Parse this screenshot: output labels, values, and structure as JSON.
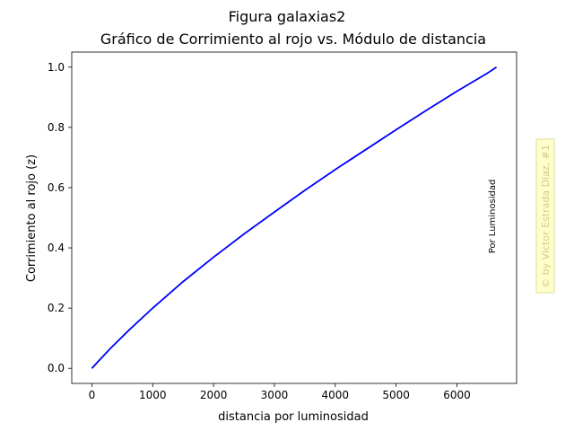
{
  "figure_title": "Figura galaxias2",
  "watermark": "© by Victor Estrada Diaz, #1",
  "chart_data": {
    "type": "line",
    "title": "Gráfico de Corrimiento al rojo vs. Módulo de distancia",
    "xlabel": "distancia por luminosidad",
    "ylabel": "Corrimiento al rojo (z)",
    "annotation": "Por Luminosidad",
    "xlim": [
      -330,
      6980
    ],
    "ylim": [
      -0.05,
      1.05
    ],
    "xticks": [
      0,
      1000,
      2000,
      3000,
      4000,
      5000,
      6000
    ],
    "xtick_labels": [
      "0",
      "1000",
      "2000",
      "3000",
      "4000",
      "5000",
      "6000"
    ],
    "yticks": [
      0.0,
      0.2,
      0.4,
      0.6,
      0.8,
      1.0
    ],
    "ytick_labels": [
      "0.0",
      "0.2",
      "0.4",
      "0.6",
      "0.8",
      "1.0"
    ],
    "grid": false,
    "series": [
      {
        "color": "#0000ff",
        "x": [
          0,
          100,
          300,
          600,
          1000,
          1500,
          2000,
          2500,
          3000,
          3500,
          4000,
          4500,
          5000,
          5500,
          6000,
          6500,
          6650
        ],
        "y": [
          0.0,
          0.022,
          0.065,
          0.125,
          0.2,
          0.288,
          0.369,
          0.446,
          0.519,
          0.591,
          0.66,
          0.726,
          0.792,
          0.857,
          0.92,
          0.98,
          1.0
        ]
      }
    ]
  }
}
